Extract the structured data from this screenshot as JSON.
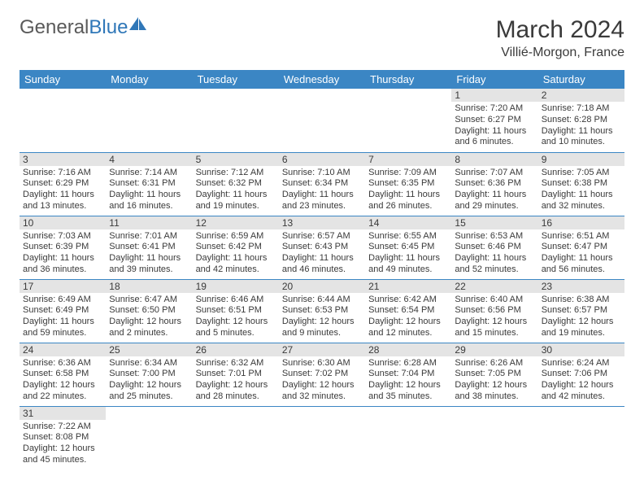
{
  "brand": {
    "part1": "General",
    "part2": "Blue",
    "color1": "#5a5a5a",
    "color2": "#2f77b8"
  },
  "title": "March 2024",
  "location": "Villié-Morgon, France",
  "colors": {
    "header_bg": "#3b86c4",
    "header_fg": "#ffffff",
    "daynum_bg": "#e4e4e4",
    "row_border": "#3b86c4",
    "text": "#3a3a3a",
    "page_bg": "#ffffff"
  },
  "fonts": {
    "title_size": 30,
    "location_size": 16,
    "dayheader_size": 13,
    "cell_size": 11
  },
  "day_headers": [
    "Sunday",
    "Monday",
    "Tuesday",
    "Wednesday",
    "Thursday",
    "Friday",
    "Saturday"
  ],
  "weeks": [
    [
      null,
      null,
      null,
      null,
      null,
      {
        "n": "1",
        "sunrise": "Sunrise: 7:20 AM",
        "sunset": "Sunset: 6:27 PM",
        "daylight": "Daylight: 11 hours and 6 minutes."
      },
      {
        "n": "2",
        "sunrise": "Sunrise: 7:18 AM",
        "sunset": "Sunset: 6:28 PM",
        "daylight": "Daylight: 11 hours and 10 minutes."
      }
    ],
    [
      {
        "n": "3",
        "sunrise": "Sunrise: 7:16 AM",
        "sunset": "Sunset: 6:29 PM",
        "daylight": "Daylight: 11 hours and 13 minutes."
      },
      {
        "n": "4",
        "sunrise": "Sunrise: 7:14 AM",
        "sunset": "Sunset: 6:31 PM",
        "daylight": "Daylight: 11 hours and 16 minutes."
      },
      {
        "n": "5",
        "sunrise": "Sunrise: 7:12 AM",
        "sunset": "Sunset: 6:32 PM",
        "daylight": "Daylight: 11 hours and 19 minutes."
      },
      {
        "n": "6",
        "sunrise": "Sunrise: 7:10 AM",
        "sunset": "Sunset: 6:34 PM",
        "daylight": "Daylight: 11 hours and 23 minutes."
      },
      {
        "n": "7",
        "sunrise": "Sunrise: 7:09 AM",
        "sunset": "Sunset: 6:35 PM",
        "daylight": "Daylight: 11 hours and 26 minutes."
      },
      {
        "n": "8",
        "sunrise": "Sunrise: 7:07 AM",
        "sunset": "Sunset: 6:36 PM",
        "daylight": "Daylight: 11 hours and 29 minutes."
      },
      {
        "n": "9",
        "sunrise": "Sunrise: 7:05 AM",
        "sunset": "Sunset: 6:38 PM",
        "daylight": "Daylight: 11 hours and 32 minutes."
      }
    ],
    [
      {
        "n": "10",
        "sunrise": "Sunrise: 7:03 AM",
        "sunset": "Sunset: 6:39 PM",
        "daylight": "Daylight: 11 hours and 36 minutes."
      },
      {
        "n": "11",
        "sunrise": "Sunrise: 7:01 AM",
        "sunset": "Sunset: 6:41 PM",
        "daylight": "Daylight: 11 hours and 39 minutes."
      },
      {
        "n": "12",
        "sunrise": "Sunrise: 6:59 AM",
        "sunset": "Sunset: 6:42 PM",
        "daylight": "Daylight: 11 hours and 42 minutes."
      },
      {
        "n": "13",
        "sunrise": "Sunrise: 6:57 AM",
        "sunset": "Sunset: 6:43 PM",
        "daylight": "Daylight: 11 hours and 46 minutes."
      },
      {
        "n": "14",
        "sunrise": "Sunrise: 6:55 AM",
        "sunset": "Sunset: 6:45 PM",
        "daylight": "Daylight: 11 hours and 49 minutes."
      },
      {
        "n": "15",
        "sunrise": "Sunrise: 6:53 AM",
        "sunset": "Sunset: 6:46 PM",
        "daylight": "Daylight: 11 hours and 52 minutes."
      },
      {
        "n": "16",
        "sunrise": "Sunrise: 6:51 AM",
        "sunset": "Sunset: 6:47 PM",
        "daylight": "Daylight: 11 hours and 56 minutes."
      }
    ],
    [
      {
        "n": "17",
        "sunrise": "Sunrise: 6:49 AM",
        "sunset": "Sunset: 6:49 PM",
        "daylight": "Daylight: 11 hours and 59 minutes."
      },
      {
        "n": "18",
        "sunrise": "Sunrise: 6:47 AM",
        "sunset": "Sunset: 6:50 PM",
        "daylight": "Daylight: 12 hours and 2 minutes."
      },
      {
        "n": "19",
        "sunrise": "Sunrise: 6:46 AM",
        "sunset": "Sunset: 6:51 PM",
        "daylight": "Daylight: 12 hours and 5 minutes."
      },
      {
        "n": "20",
        "sunrise": "Sunrise: 6:44 AM",
        "sunset": "Sunset: 6:53 PM",
        "daylight": "Daylight: 12 hours and 9 minutes."
      },
      {
        "n": "21",
        "sunrise": "Sunrise: 6:42 AM",
        "sunset": "Sunset: 6:54 PM",
        "daylight": "Daylight: 12 hours and 12 minutes."
      },
      {
        "n": "22",
        "sunrise": "Sunrise: 6:40 AM",
        "sunset": "Sunset: 6:56 PM",
        "daylight": "Daylight: 12 hours and 15 minutes."
      },
      {
        "n": "23",
        "sunrise": "Sunrise: 6:38 AM",
        "sunset": "Sunset: 6:57 PM",
        "daylight": "Daylight: 12 hours and 19 minutes."
      }
    ],
    [
      {
        "n": "24",
        "sunrise": "Sunrise: 6:36 AM",
        "sunset": "Sunset: 6:58 PM",
        "daylight": "Daylight: 12 hours and 22 minutes."
      },
      {
        "n": "25",
        "sunrise": "Sunrise: 6:34 AM",
        "sunset": "Sunset: 7:00 PM",
        "daylight": "Daylight: 12 hours and 25 minutes."
      },
      {
        "n": "26",
        "sunrise": "Sunrise: 6:32 AM",
        "sunset": "Sunset: 7:01 PM",
        "daylight": "Daylight: 12 hours and 28 minutes."
      },
      {
        "n": "27",
        "sunrise": "Sunrise: 6:30 AM",
        "sunset": "Sunset: 7:02 PM",
        "daylight": "Daylight: 12 hours and 32 minutes."
      },
      {
        "n": "28",
        "sunrise": "Sunrise: 6:28 AM",
        "sunset": "Sunset: 7:04 PM",
        "daylight": "Daylight: 12 hours and 35 minutes."
      },
      {
        "n": "29",
        "sunrise": "Sunrise: 6:26 AM",
        "sunset": "Sunset: 7:05 PM",
        "daylight": "Daylight: 12 hours and 38 minutes."
      },
      {
        "n": "30",
        "sunrise": "Sunrise: 6:24 AM",
        "sunset": "Sunset: 7:06 PM",
        "daylight": "Daylight: 12 hours and 42 minutes."
      }
    ],
    [
      {
        "n": "31",
        "sunrise": "Sunrise: 7:22 AM",
        "sunset": "Sunset: 8:08 PM",
        "daylight": "Daylight: 12 hours and 45 minutes."
      },
      null,
      null,
      null,
      null,
      null,
      null
    ]
  ]
}
